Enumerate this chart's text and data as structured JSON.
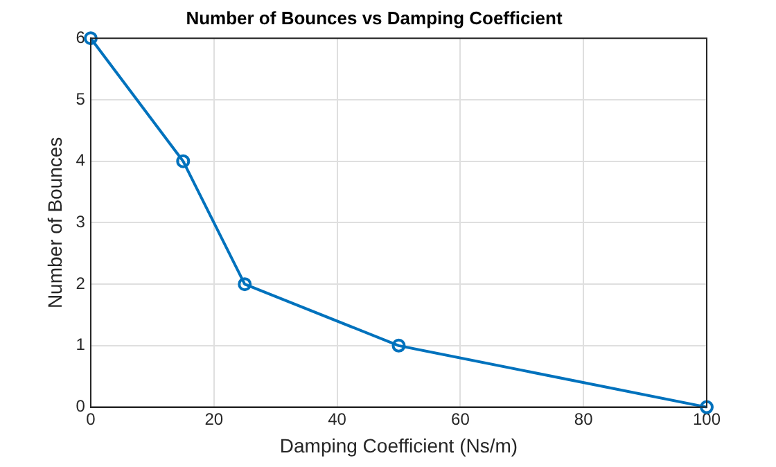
{
  "chart_data": {
    "type": "line",
    "title": "Number of Bounces vs Damping Coefficient",
    "xlabel": "Damping Coefficient (Ns/m)",
    "ylabel": "Number of Bounces",
    "x": [
      0,
      15,
      25,
      50,
      100
    ],
    "series": [
      {
        "color": "#0072bd",
        "values": [
          6,
          4,
          2,
          1,
          0
        ]
      }
    ],
    "xlim": [
      0,
      100
    ],
    "xticks": [
      0,
      20,
      40,
      60,
      80,
      100
    ],
    "ylim": [
      0,
      6
    ],
    "yticks": [
      0,
      1,
      2,
      3,
      4,
      5,
      6
    ],
    "grid": true,
    "legend": false,
    "marker": "circle",
    "line_style": "solid"
  }
}
